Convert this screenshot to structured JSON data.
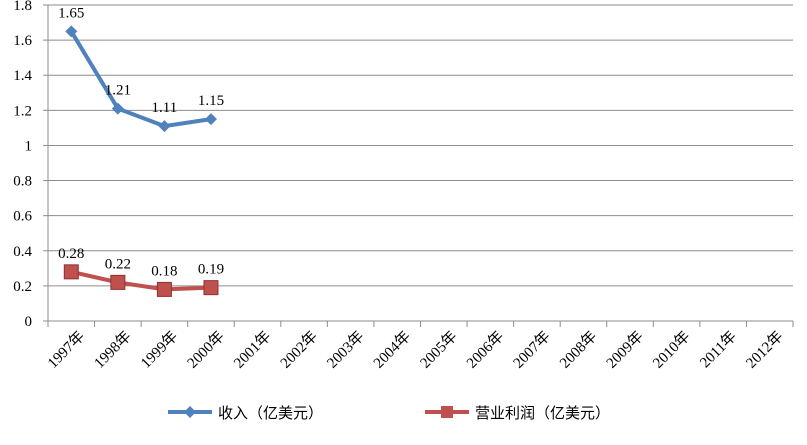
{
  "chart_data": {
    "type": "line",
    "categories": [
      "1997年",
      "1998年",
      "1999年",
      "2000年",
      "2001年",
      "2002年",
      "2003年",
      "2004年",
      "2005年",
      "2006年",
      "2007年",
      "2008年",
      "2009年",
      "2010年",
      "2011年",
      "2012年"
    ],
    "series": [
      {
        "name": "收入（亿美元）",
        "values": [
          1.65,
          1.21,
          1.11,
          1.15,
          null,
          null,
          null,
          null,
          null,
          null,
          null,
          null,
          null,
          null,
          null,
          null
        ],
        "labels": [
          "1.65",
          "1.21",
          "1.11",
          "1.15"
        ],
        "color": "#4F81BD",
        "marker": "diamond"
      },
      {
        "name": "营业利润（亿美元）",
        "values": [
          0.28,
          0.22,
          0.18,
          0.19,
          null,
          null,
          null,
          null,
          null,
          null,
          null,
          null,
          null,
          null,
          null,
          null
        ],
        "labels": [
          "0.28",
          "0.22",
          "0.18",
          "0.19"
        ],
        "color": "#C0504D",
        "marker": "square"
      }
    ],
    "y_ticks": [
      "0",
      "0.2",
      "0.4",
      "0.6",
      "0.8",
      "1",
      "1.2",
      "1.4",
      "1.6",
      "1.8"
    ],
    "ylim": [
      0,
      1.8
    ],
    "title": "",
    "xlabel": "",
    "ylabel": "",
    "grid": true,
    "legend_position": "bottom"
  }
}
